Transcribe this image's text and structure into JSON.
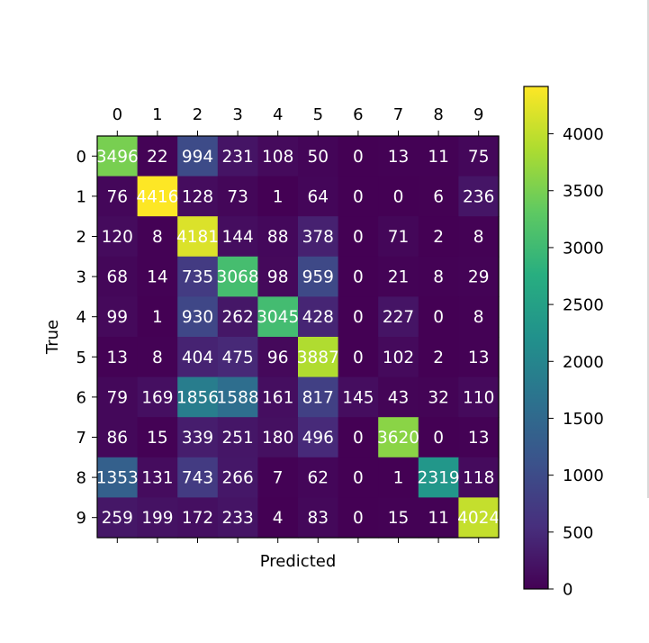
{
  "chart_data": {
    "type": "heatmap",
    "title": "",
    "xlabel": "Predicted",
    "ylabel": "True",
    "x_categories": [
      "0",
      "1",
      "2",
      "3",
      "4",
      "5",
      "6",
      "7",
      "8",
      "9"
    ],
    "y_categories": [
      "0",
      "1",
      "2",
      "3",
      "4",
      "5",
      "6",
      "7",
      "8",
      "9"
    ],
    "x_axis_position": "top",
    "matrix": [
      [
        3496,
        22,
        994,
        231,
        108,
        50,
        0,
        13,
        11,
        75
      ],
      [
        76,
        4416,
        128,
        73,
        1,
        64,
        0,
        0,
        6,
        236
      ],
      [
        120,
        8,
        4181,
        144,
        88,
        378,
        0,
        71,
        2,
        8
      ],
      [
        68,
        14,
        735,
        3068,
        98,
        959,
        0,
        21,
        8,
        29
      ],
      [
        99,
        1,
        930,
        262,
        3045,
        428,
        0,
        227,
        0,
        8
      ],
      [
        13,
        8,
        404,
        475,
        96,
        3887,
        0,
        102,
        2,
        13
      ],
      [
        79,
        169,
        1856,
        1588,
        161,
        817,
        145,
        43,
        32,
        110
      ],
      [
        86,
        15,
        339,
        251,
        180,
        496,
        0,
        3620,
        0,
        13
      ],
      [
        1353,
        131,
        743,
        266,
        7,
        62,
        0,
        1,
        2319,
        118
      ],
      [
        259,
        199,
        172,
        233,
        4,
        83,
        0,
        15,
        11,
        4024
      ]
    ],
    "colormap": "viridis",
    "color_range": [
      0,
      4416
    ],
    "colorbar": {
      "ticks": [
        0,
        500,
        1000,
        1500,
        2000,
        2500,
        3000,
        3500,
        4000
      ],
      "tick_labels": [
        "0",
        "500",
        "1000",
        "1500",
        "2000",
        "2500",
        "3000",
        "3500",
        "4000"
      ],
      "placement": "right"
    },
    "text_color": "#ffffff",
    "grid": false
  }
}
